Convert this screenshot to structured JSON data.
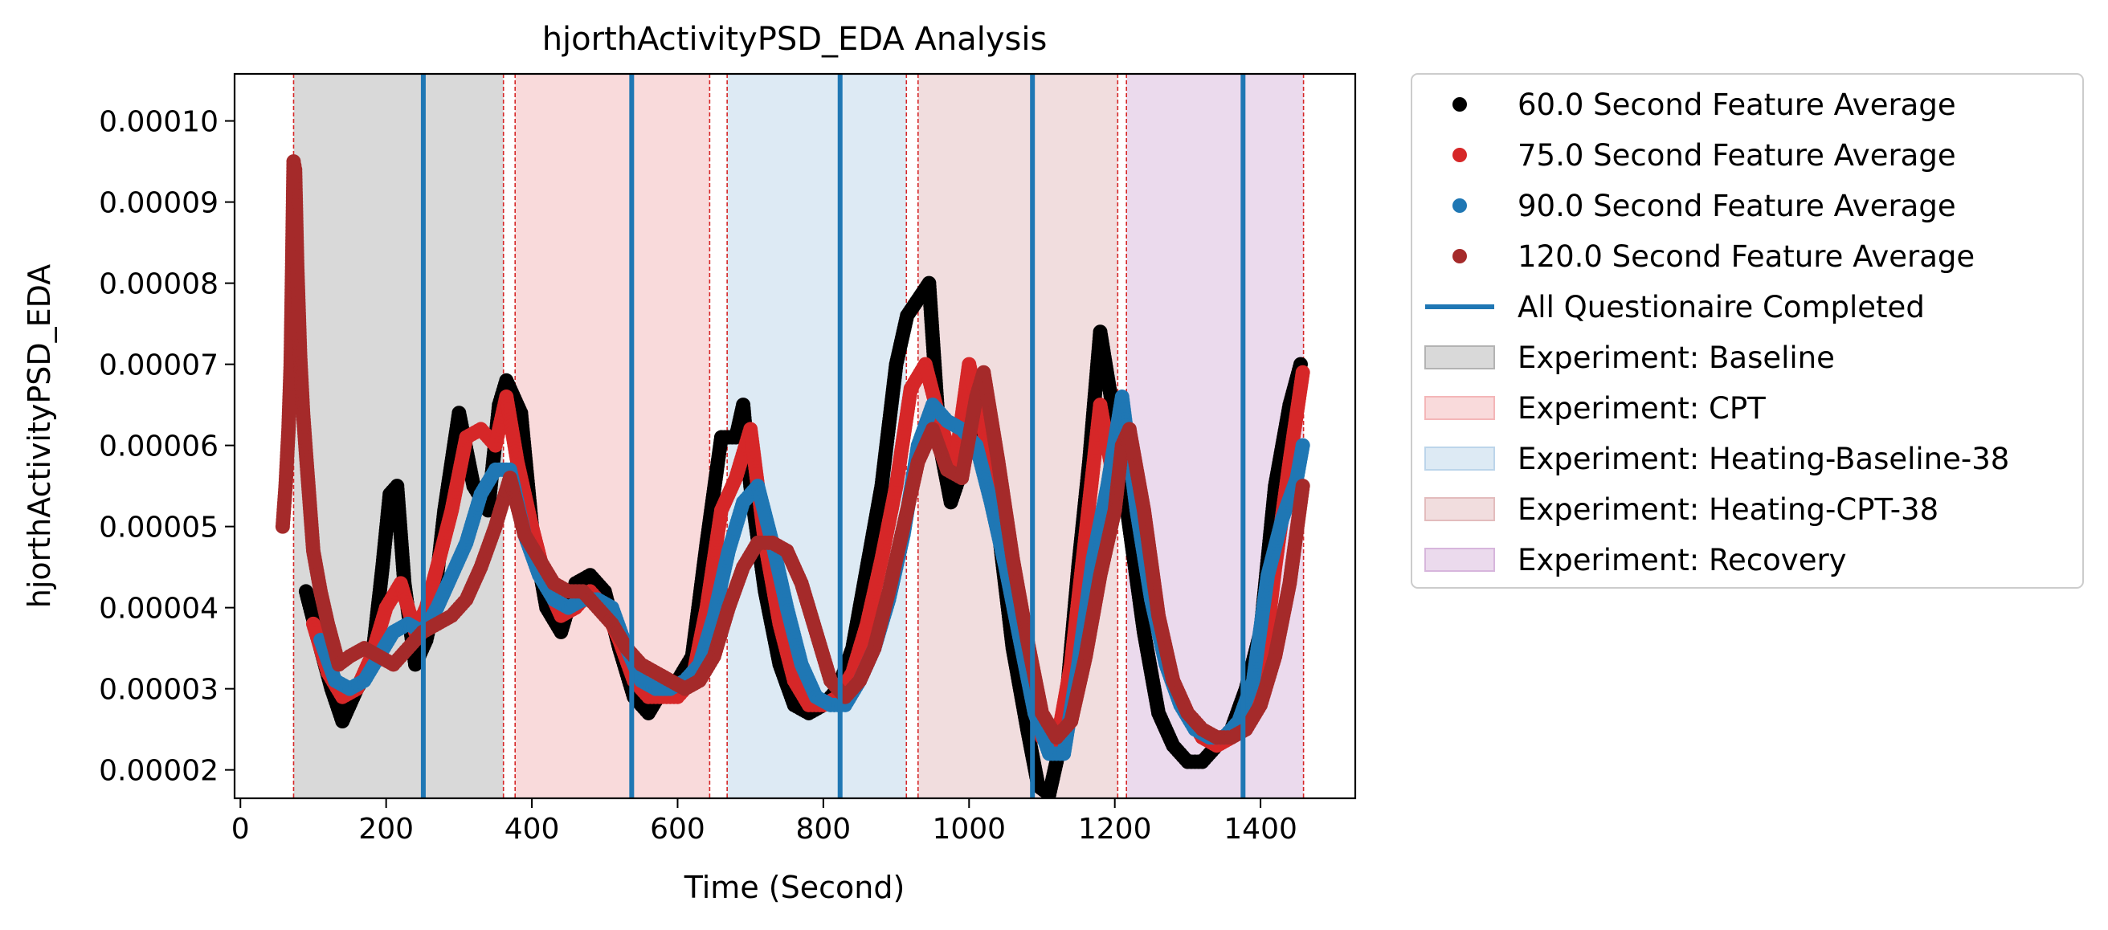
{
  "chart_data": {
    "type": "scatter",
    "title": "hjorthActivityPSD_EDA Analysis",
    "xlabel": "Time (Second)",
    "ylabel": "hjorthActivityPSD_EDA",
    "xlim": [
      -8,
      1530
    ],
    "ylim": [
      1.65e-05,
      0.0001058
    ],
    "grid": false,
    "legend_position": "outside right",
    "xticks": [
      {
        "value": 0,
        "label": "0"
      },
      {
        "value": 200,
        "label": "200"
      },
      {
        "value": 400,
        "label": "400"
      },
      {
        "value": 600,
        "label": "600"
      },
      {
        "value": 800,
        "label": "800"
      },
      {
        "value": 1000,
        "label": "1000"
      },
      {
        "value": 1200,
        "label": "1200"
      },
      {
        "value": 1400,
        "label": "1400"
      }
    ],
    "yticks": [
      {
        "value": 2e-05,
        "label": "0.00002"
      },
      {
        "value": 3e-05,
        "label": "0.00003"
      },
      {
        "value": 4e-05,
        "label": "0.00004"
      },
      {
        "value": 5e-05,
        "label": "0.00005"
      },
      {
        "value": 6e-05,
        "label": "0.00006"
      },
      {
        "value": 7e-05,
        "label": "0.00007"
      },
      {
        "value": 8e-05,
        "label": "0.00008"
      },
      {
        "value": 9e-05,
        "label": "0.00009"
      },
      {
        "value": 0.0001,
        "label": "0.00010"
      }
    ],
    "experiments": [
      {
        "name": "Experiment: Baseline",
        "start": 73,
        "end": 361,
        "color": "#b3b3b3"
      },
      {
        "name": "Experiment: CPT",
        "start": 377,
        "end": 644,
        "color": "#f4b6b8"
      },
      {
        "name": "Experiment: Heating-Baseline-38",
        "start": 668,
        "end": 914,
        "color": "#bcd5ea"
      },
      {
        "name": "Experiment: Heating-CPT-38",
        "start": 930,
        "end": 1204,
        "color": "#e3bcbd"
      },
      {
        "name": "Experiment: Recovery",
        "start": 1216,
        "end": 1459,
        "color": "#d7b6dc"
      }
    ],
    "boundary_lines": [
      73,
      361,
      377,
      644,
      668,
      914,
      930,
      1204,
      1216,
      1459
    ],
    "boundary_color": "#d62728",
    "questionnaire_lines": {
      "name": "All Questionaire Completed",
      "color": "#1f77b4",
      "x": [
        251,
        537,
        823,
        1087,
        1376
      ]
    },
    "series": [
      {
        "name": "60.0 Second Feature Average",
        "color": "#000000",
        "x": [
          90,
          110,
          125,
          140,
          160,
          180,
          195,
          205,
          215,
          225,
          240,
          255,
          265,
          280,
          300,
          320,
          340,
          355,
          365,
          385,
          400,
          420,
          440,
          460,
          480,
          500,
          520,
          540,
          560,
          580,
          600,
          620,
          640,
          660,
          680,
          690,
          700,
          720,
          740,
          760,
          780,
          800,
          820,
          840,
          860,
          880,
          900,
          915,
          930,
          945,
          960,
          975,
          990,
          1000,
          1020,
          1040,
          1060,
          1080,
          1095,
          1110,
          1130,
          1150,
          1165,
          1180,
          1200,
          1220,
          1240,
          1260,
          1280,
          1300,
          1320,
          1340,
          1360,
          1380,
          1400,
          1420,
          1440,
          1455
        ],
        "y": [
          4.2e-05,
          3.5e-05,
          3e-05,
          2.6e-05,
          3e-05,
          3.3e-05,
          4.5e-05,
          5.4e-05,
          5.5e-05,
          4.3e-05,
          3.3e-05,
          3.6e-05,
          4e-05,
          5.2e-05,
          6.4e-05,
          5.5e-05,
          5.2e-05,
          6.5e-05,
          6.8e-05,
          6.4e-05,
          5e-05,
          4e-05,
          3.7e-05,
          4.3e-05,
          4.4e-05,
          4.2e-05,
          3.5e-05,
          2.9e-05,
          2.7e-05,
          3e-05,
          3.1e-05,
          3.4e-05,
          4.8e-05,
          6.1e-05,
          6.1e-05,
          6.5e-05,
          5.5e-05,
          4.2e-05,
          3.3e-05,
          2.8e-05,
          2.7e-05,
          2.8e-05,
          3e-05,
          3.5e-05,
          4.5e-05,
          5.5e-05,
          7e-05,
          7.6e-05,
          7.8e-05,
          8e-05,
          6e-05,
          5.3e-05,
          5.7e-05,
          6e-05,
          6.3e-05,
          5e-05,
          3.5e-05,
          2.5e-05,
          1.8e-05,
          1.7e-05,
          2.5e-05,
          4.5e-05,
          5.8e-05,
          7.4e-05,
          6.3e-05,
          5e-05,
          3.7e-05,
          2.7e-05,
          2.3e-05,
          2.1e-05,
          2.1e-05,
          2.3e-05,
          2.5e-05,
          3e-05,
          3.7e-05,
          5.5e-05,
          6.5e-05,
          7e-05
        ]
      },
      {
        "name": "75.0 Second Feature Average",
        "color": "#d62728",
        "x": [
          100,
          120,
          140,
          160,
          180,
          200,
          220,
          240,
          255,
          270,
          290,
          310,
          330,
          350,
          365,
          380,
          400,
          420,
          440,
          460,
          480,
          500,
          520,
          540,
          560,
          580,
          600,
          620,
          640,
          660,
          680,
          700,
          720,
          740,
          760,
          780,
          800,
          820,
          840,
          860,
          880,
          900,
          920,
          940,
          960,
          980,
          1000,
          1020,
          1040,
          1060,
          1080,
          1100,
          1120,
          1140,
          1160,
          1180,
          1200,
          1220,
          1240,
          1260,
          1280,
          1300,
          1320,
          1340,
          1360,
          1380,
          1400,
          1420,
          1440,
          1458
        ],
        "y": [
          3.8e-05,
          3.2e-05,
          2.9e-05,
          3e-05,
          3.4e-05,
          4e-05,
          4.3e-05,
          3.7e-05,
          4e-05,
          4.5e-05,
          5.2e-05,
          6.1e-05,
          6.2e-05,
          6e-05,
          6.6e-05,
          5.8e-05,
          5e-05,
          4.3e-05,
          3.9e-05,
          4e-05,
          4.2e-05,
          4e-05,
          3.6e-05,
          3.1e-05,
          2.9e-05,
          2.9e-05,
          2.9e-05,
          3.1e-05,
          4e-05,
          5.2e-05,
          5.6e-05,
          6.2e-05,
          4.8e-05,
          3.8e-05,
          3.1e-05,
          2.8e-05,
          2.8e-05,
          2.9e-05,
          3.2e-05,
          3.8e-05,
          4.6e-05,
          5.5e-05,
          6.7e-05,
          7e-05,
          6.3e-05,
          5.7e-05,
          7e-05,
          6.2e-05,
          5.2e-05,
          4.3e-05,
          3.2e-05,
          2.4e-05,
          2.3e-05,
          3.3e-05,
          4.9e-05,
          6.5e-05,
          5.5e-05,
          6.2e-05,
          5e-05,
          3.8e-05,
          3.1e-05,
          2.7e-05,
          2.4e-05,
          2.3e-05,
          2.4e-05,
          2.6e-05,
          3e-05,
          4.5e-05,
          5.8e-05,
          6.9e-05
        ]
      },
      {
        "name": "90.0 Second Feature Average",
        "color": "#1f77b4",
        "x": [
          110,
          130,
          150,
          170,
          190,
          210,
          230,
          250,
          270,
          290,
          310,
          330,
          350,
          370,
          390,
          410,
          430,
          450,
          470,
          490,
          510,
          530,
          550,
          570,
          590,
          610,
          630,
          650,
          670,
          690,
          710,
          730,
          750,
          770,
          790,
          810,
          830,
          850,
          870,
          890,
          910,
          930,
          950,
          970,
          990,
          1010,
          1030,
          1050,
          1070,
          1090,
          1110,
          1130,
          1150,
          1170,
          1190,
          1210,
          1230,
          1250,
          1270,
          1290,
          1310,
          1330,
          1350,
          1370,
          1390,
          1410,
          1430,
          1450,
          1458
        ],
        "y": [
          3.6e-05,
          3.1e-05,
          3e-05,
          3.1e-05,
          3.4e-05,
          3.7e-05,
          3.8e-05,
          3.7e-05,
          4e-05,
          4.4e-05,
          4.8e-05,
          5.4e-05,
          5.7e-05,
          5.7e-05,
          4.9e-05,
          4.4e-05,
          4.1e-05,
          4e-05,
          4.1e-05,
          4.1e-05,
          4e-05,
          3.5e-05,
          3.1e-05,
          3e-05,
          3e-05,
          3.1e-05,
          3.3e-05,
          3.9e-05,
          4.7e-05,
          5.3e-05,
          5.5e-05,
          4.8e-05,
          4e-05,
          3.3e-05,
          2.9e-05,
          2.8e-05,
          2.8e-05,
          3.1e-05,
          3.5e-05,
          4.1e-05,
          4.9e-05,
          6e-05,
          6.5e-05,
          6.3e-05,
          6.2e-05,
          6e-05,
          5.3e-05,
          4.5e-05,
          3.6e-05,
          2.7e-05,
          2.2e-05,
          2.2e-05,
          3.3e-05,
          4.6e-05,
          5.5e-05,
          6.6e-05,
          5.2e-05,
          4.1e-05,
          3.3e-05,
          2.8e-05,
          2.5e-05,
          2.4e-05,
          2.4e-05,
          2.6e-05,
          3.1e-05,
          4.4e-05,
          5.1e-05,
          5.6e-05,
          6e-05
        ]
      },
      {
        "name": "120.0 Second Feature Average",
        "color": "#a52a2a",
        "x": [
          58,
          62,
          66,
          69,
          71,
          73,
          75,
          78,
          82,
          86,
          90,
          95,
          100,
          110,
          120,
          135,
          150,
          170,
          190,
          210,
          230,
          250,
          270,
          290,
          310,
          330,
          350,
          370,
          390,
          410,
          430,
          450,
          470,
          490,
          510,
          530,
          550,
          570,
          590,
          610,
          630,
          650,
          670,
          690,
          710,
          730,
          750,
          770,
          790,
          810,
          830,
          850,
          870,
          890,
          910,
          930,
          950,
          970,
          990,
          1010,
          1020,
          1040,
          1060,
          1080,
          1100,
          1120,
          1140,
          1160,
          1180,
          1200,
          1210,
          1220,
          1240,
          1260,
          1280,
          1300,
          1320,
          1340,
          1360,
          1380,
          1400,
          1420,
          1440,
          1458
        ],
        "y": [
          5e-05,
          5.5e-05,
          6.2e-05,
          7e-05,
          8.2e-05,
          9.5e-05,
          9.4e-05,
          8.2e-05,
          7.1e-05,
          6.4e-05,
          5.9e-05,
          5.3e-05,
          4.7e-05,
          4.2e-05,
          3.8e-05,
          3.3e-05,
          3.4e-05,
          3.5e-05,
          3.4e-05,
          3.3e-05,
          3.5e-05,
          3.7e-05,
          3.8e-05,
          3.9e-05,
          4.1e-05,
          4.5e-05,
          5e-05,
          5.6e-05,
          4.9e-05,
          4.6e-05,
          4.3e-05,
          4.2e-05,
          4.2e-05,
          4e-05,
          3.8e-05,
          3.5e-05,
          3.3e-05,
          3.2e-05,
          3.1e-05,
          3e-05,
          3.1e-05,
          3.4e-05,
          4e-05,
          4.5e-05,
          4.8e-05,
          4.8e-05,
          4.7e-05,
          4.3e-05,
          3.7e-05,
          3.1e-05,
          2.9e-05,
          3.1e-05,
          3.5e-05,
          4.2e-05,
          5e-05,
          5.8e-05,
          6.2e-05,
          5.7e-05,
          5.6e-05,
          6.6e-05,
          6.9e-05,
          5.8e-05,
          4.6e-05,
          3.6e-05,
          2.7e-05,
          2.4e-05,
          2.6e-05,
          3.4e-05,
          4.4e-05,
          5.2e-05,
          6e-05,
          6.2e-05,
          5.2e-05,
          3.9e-05,
          3.1e-05,
          2.7e-05,
          2.5e-05,
          2.4e-05,
          2.4e-05,
          2.5e-05,
          2.8e-05,
          3.4e-05,
          4.3e-05,
          5.5e-05
        ]
      }
    ]
  }
}
